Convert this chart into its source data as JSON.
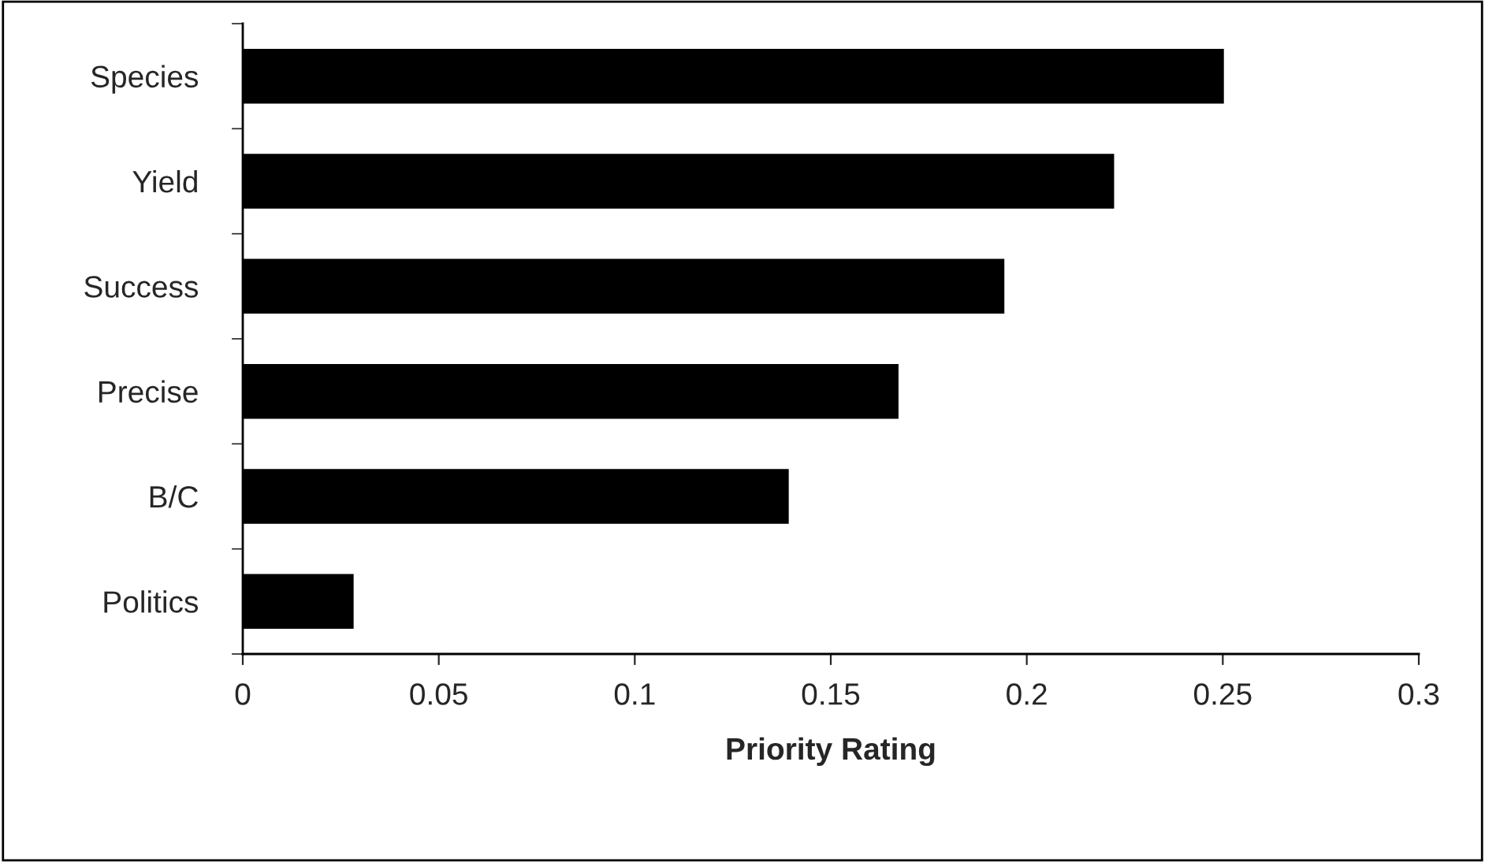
{
  "chart_data": {
    "type": "bar",
    "orientation": "horizontal",
    "xlabel": "Priority Rating",
    "categories": [
      "Species",
      "Yield",
      "Success",
      "Precise",
      "B/C",
      "Politics"
    ],
    "values": [
      0.25,
      0.222,
      0.194,
      0.167,
      0.139,
      0.028
    ],
    "color": "#000000",
    "xlim": [
      0,
      0.3
    ],
    "xticks": [
      0,
      0.05,
      0.1,
      0.15,
      0.2,
      0.25,
      0.3
    ],
    "grid": false
  }
}
